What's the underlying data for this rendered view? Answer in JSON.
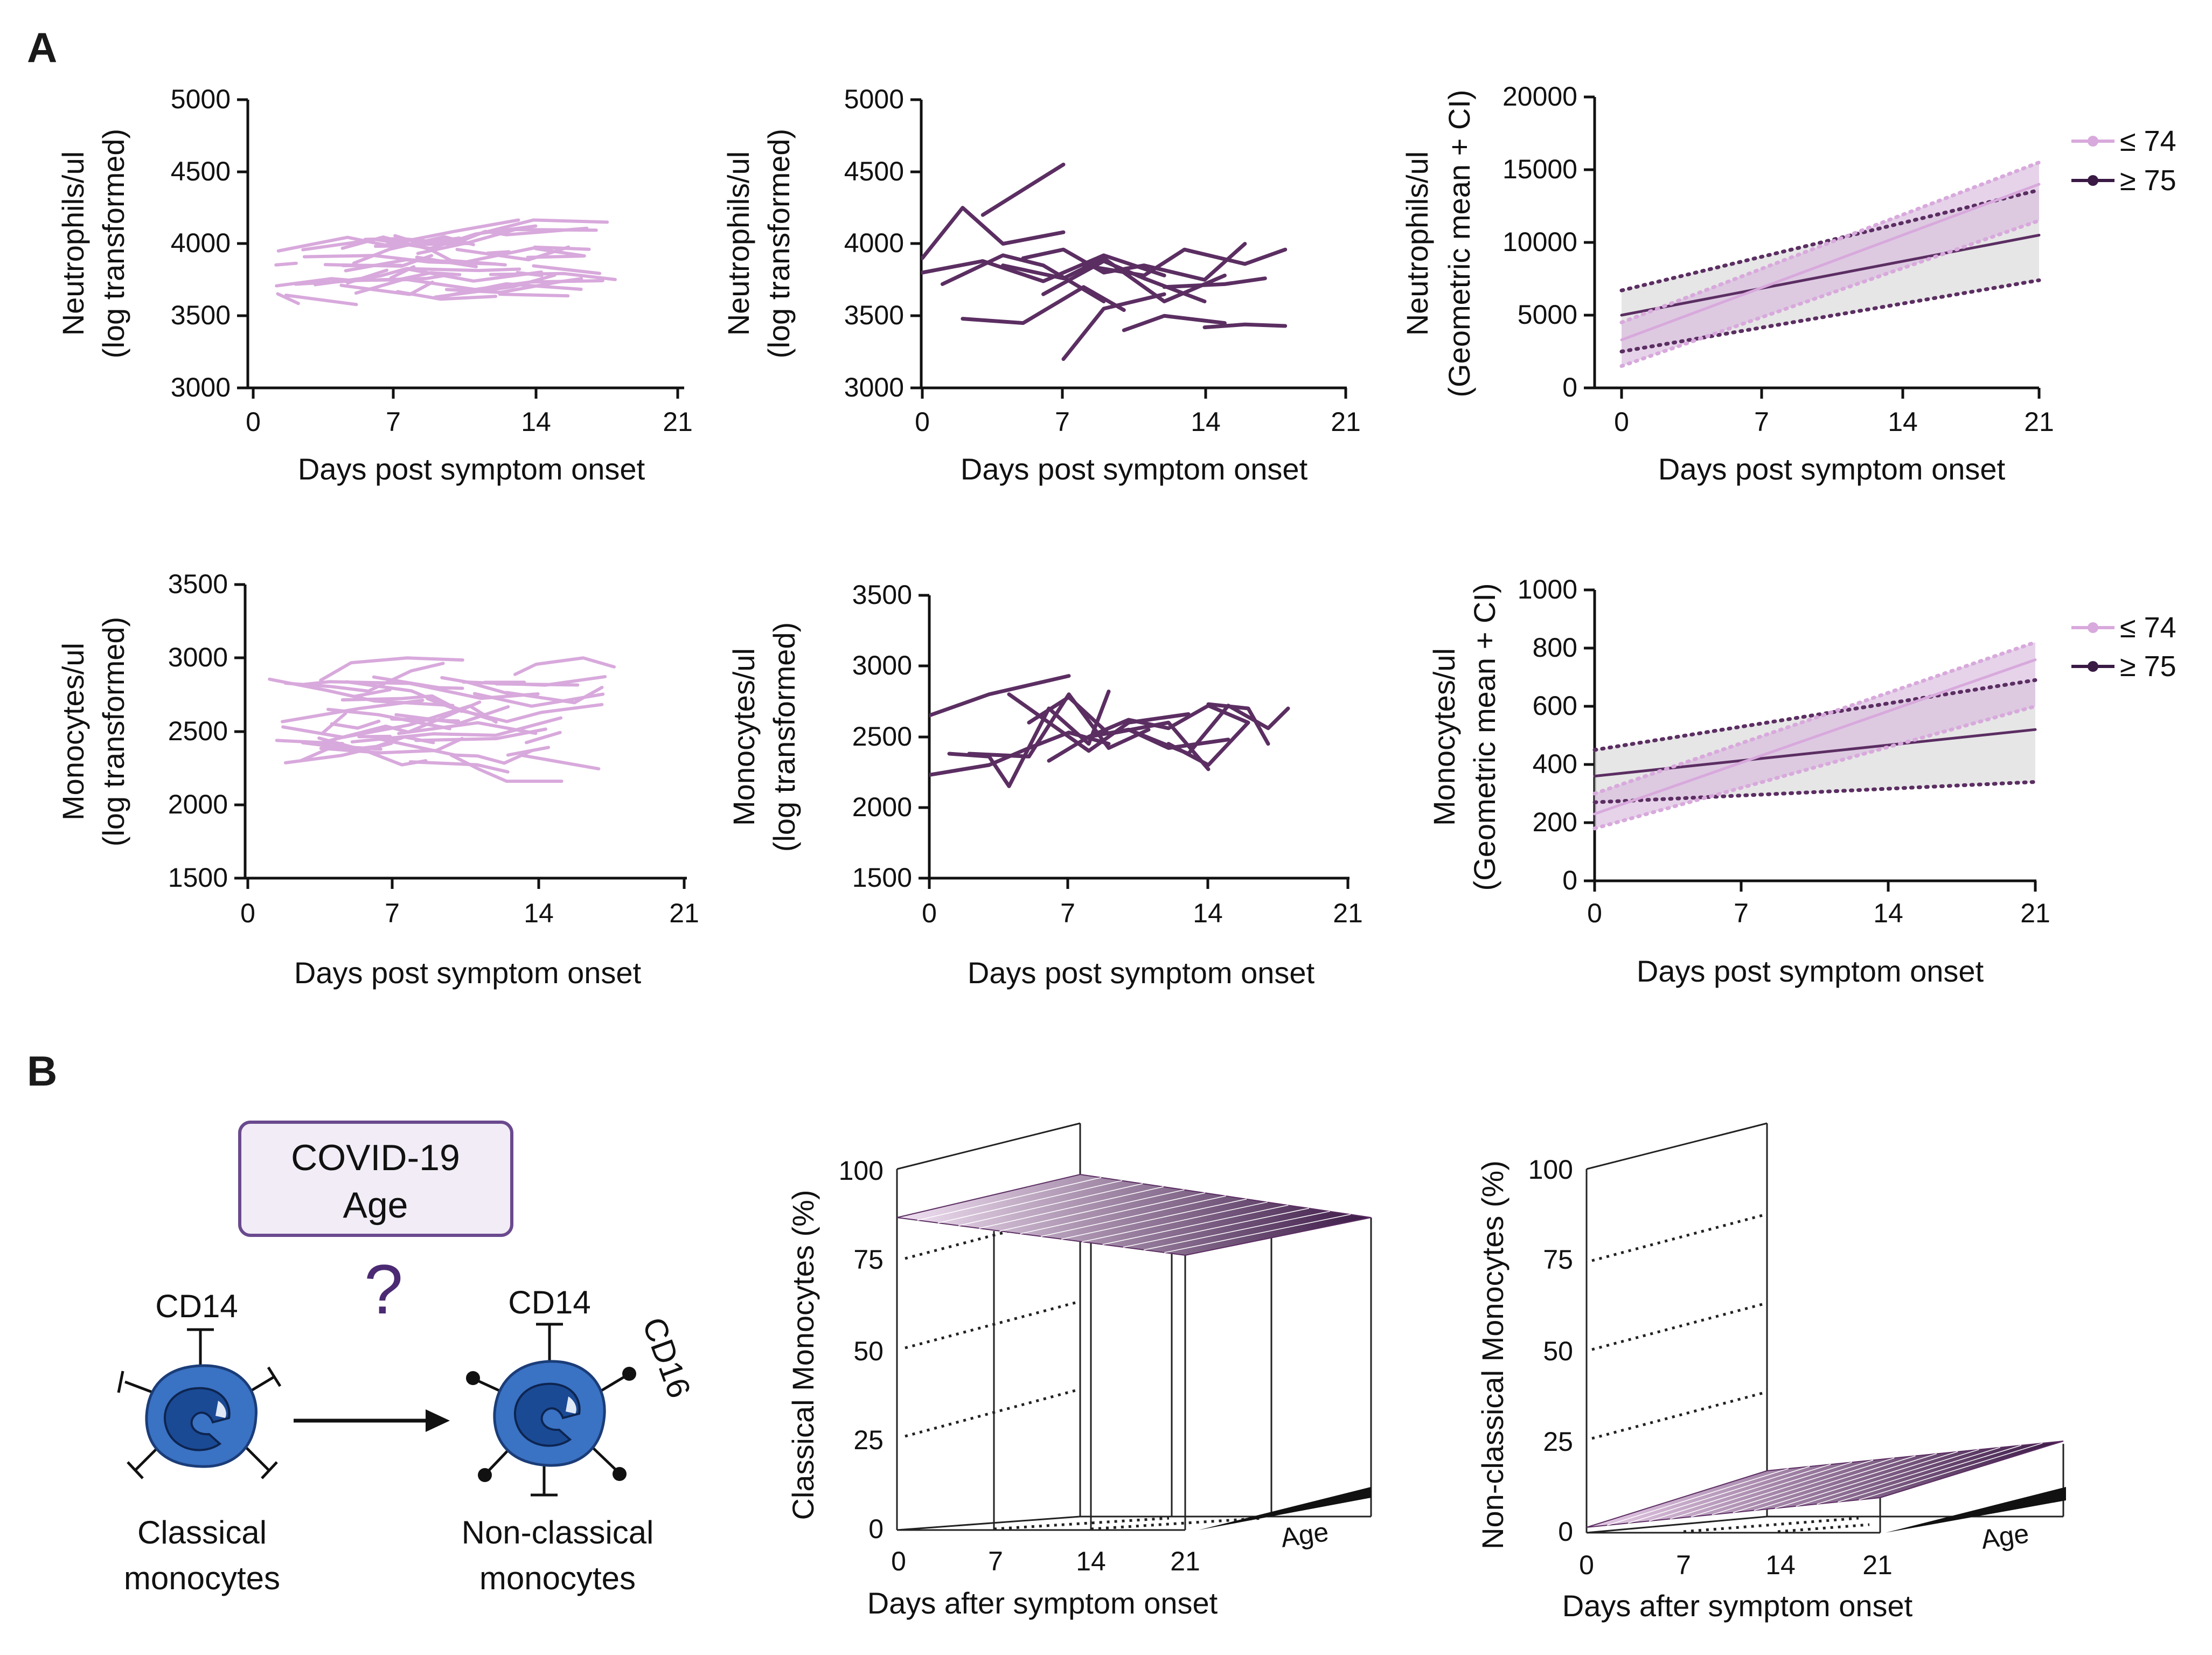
{
  "panel_labels": {
    "a": "A",
    "b": "B"
  },
  "colors": {
    "young": "#d8a9dc",
    "old": "#5b2e62",
    "ci_young_fill": "#d9bcde",
    "ci_old_fill": "#d8d8d8",
    "mono_blue": "#3a72c4",
    "mono_dark": "#1b3d78",
    "box_border": "#6a4a8e",
    "box_fill": "#f1ecf6",
    "surface_light": "#e8cde9",
    "surface_dark": "#3c1a47"
  },
  "chart_data": [
    {
      "id": "neut-young",
      "type": "line",
      "ylabel_line1": "Neutrophils/ul",
      "ylabel_line2": "(log transformed)",
      "xlabel": "Days post symptom onset",
      "xlim": [
        0,
        21
      ],
      "ylim": [
        3000,
        5000
      ],
      "xticks": [
        "0",
        "7",
        "14",
        "21"
      ],
      "yticks": [
        "3000",
        "3500",
        "4000",
        "4500",
        "5000"
      ],
      "series_color": "young",
      "n_trajectories": 40,
      "x_range": [
        1,
        18
      ],
      "y_center": 3850,
      "y_spread": 420,
      "slope_scale": 12,
      "seed": 11
    },
    {
      "id": "neut-old",
      "type": "line",
      "ylabel_line1": "Neutrophils/ul",
      "ylabel_line2": "(log transformed)",
      "xlabel": "Days post symptom onset",
      "xlim": [
        0,
        21
      ],
      "ylim": [
        3000,
        5000
      ],
      "xticks": [
        "0",
        "7",
        "14",
        "21"
      ],
      "yticks": [
        "3000",
        "3500",
        "4000",
        "4500",
        "5000"
      ],
      "series_color": "old",
      "series": [
        {
          "x": [
            0,
            2,
            4,
            7
          ],
          "y": [
            3900,
            4250,
            4000,
            4080
          ]
        },
        {
          "x": [
            3,
            7
          ],
          "y": [
            4200,
            4550
          ]
        },
        {
          "x": [
            0,
            3,
            6,
            9,
            12
          ],
          "y": [
            3800,
            3880,
            3740,
            3920,
            3780
          ]
        },
        {
          "x": [
            1,
            4,
            6,
            9
          ],
          "y": [
            3720,
            3920,
            3850,
            3600
          ]
        },
        {
          "x": [
            2,
            5,
            8,
            10
          ],
          "y": [
            3480,
            3450,
            3700,
            3540
          ]
        },
        {
          "x": [
            4,
            7,
            9,
            12,
            15
          ],
          "y": [
            3850,
            3760,
            3900,
            3600,
            3780
          ]
        },
        {
          "x": [
            6,
            9,
            11,
            14
          ],
          "y": [
            3650,
            3880,
            3760,
            3600
          ]
        },
        {
          "x": [
            8,
            11,
            13,
            16,
            18
          ],
          "y": [
            3850,
            3780,
            3960,
            3860,
            3960
          ]
        },
        {
          "x": [
            10,
            12,
            15
          ],
          "y": [
            3400,
            3500,
            3450
          ]
        },
        {
          "x": [
            12,
            15,
            17
          ],
          "y": [
            3700,
            3720,
            3760
          ]
        },
        {
          "x": [
            14,
            16,
            18
          ],
          "y": [
            3420,
            3440,
            3430
          ]
        },
        {
          "x": [
            5,
            7,
            9,
            11,
            14,
            16
          ],
          "y": [
            3900,
            3960,
            3800,
            3850,
            3750,
            4000
          ]
        },
        {
          "x": [
            7,
            9,
            12
          ],
          "y": [
            3200,
            3550,
            3650
          ]
        }
      ]
    },
    {
      "id": "neut-mean",
      "type": "line",
      "ylabel_line1": "Neutrophils/ul",
      "ylabel_line2": "(Geometric mean + CI)",
      "xlabel": "Days post symptom onset",
      "xlim": [
        0,
        21
      ],
      "ylim": [
        0,
        20000
      ],
      "xticks": [
        "0",
        "7",
        "14",
        "21"
      ],
      "yticks": [
        "0",
        "5000",
        "10000",
        "15000",
        "20000"
      ],
      "legend": [
        "≤ 74",
        "≥ 75"
      ],
      "series": [
        {
          "name": "≤ 74",
          "color": "young",
          "x": [
            0,
            21
          ],
          "mean": [
            3300,
            14000
          ],
          "lo": [
            1500,
            11500
          ],
          "hi": [
            4500,
            15500
          ]
        },
        {
          "name": "≥ 75",
          "color": "old",
          "x": [
            0,
            21
          ],
          "mean": [
            5000,
            10500
          ],
          "lo": [
            2500,
            7400
          ],
          "hi": [
            6700,
            13600
          ]
        }
      ]
    },
    {
      "id": "mono-young",
      "type": "line",
      "ylabel_line1": "Monocytes/ul",
      "ylabel_line2": "(log transformed)",
      "xlabel": "Days post symptom onset",
      "xlim": [
        0,
        21
      ],
      "ylim": [
        1500,
        3500
      ],
      "xticks": [
        "0",
        "7",
        "14",
        "21"
      ],
      "yticks": [
        "1500",
        "2000",
        "2500",
        "3000",
        "3500"
      ],
      "series_color": "young",
      "n_trajectories": 40,
      "x_range": [
        0,
        18
      ],
      "y_center": 2580,
      "y_spread": 560,
      "slope_scale": 12,
      "seed": 29
    },
    {
      "id": "mono-old",
      "type": "line",
      "ylabel_line1": "Monocytes/ul",
      "ylabel_line2": "(log transformed)",
      "xlabel": "Days post symptom onset",
      "xlim": [
        0,
        21
      ],
      "ylim": [
        1500,
        3500
      ],
      "xticks": [
        "0",
        "7",
        "14",
        "21"
      ],
      "yticks": [
        "1500",
        "2000",
        "2500",
        "3000",
        "3500"
      ],
      "series_color": "old",
      "series": [
        {
          "x": [
            0,
            3,
            7
          ],
          "y": [
            2650,
            2800,
            2930
          ]
        },
        {
          "x": [
            0,
            3,
            5,
            7,
            9
          ],
          "y": [
            2230,
            2300,
            2420,
            2530,
            2450
          ]
        },
        {
          "x": [
            1,
            3,
            4,
            6,
            8,
            9
          ],
          "y": [
            2380,
            2360,
            2150,
            2700,
            2450,
            2820
          ]
        },
        {
          "x": [
            2,
            5,
            7,
            9,
            11
          ],
          "y": [
            2380,
            2360,
            2800,
            2420,
            2550
          ]
        },
        {
          "x": [
            4,
            6,
            8,
            10,
            13
          ],
          "y": [
            2800,
            2600,
            2400,
            2600,
            2660
          ]
        },
        {
          "x": [
            6,
            8,
            10,
            12,
            15
          ],
          "y": [
            2330,
            2500,
            2550,
            2420,
            2480
          ]
        },
        {
          "x": [
            8,
            10,
            12,
            14,
            16
          ],
          "y": [
            2500,
            2620,
            2560,
            2720,
            2600
          ]
        },
        {
          "x": [
            10,
            13,
            15,
            17,
            18
          ],
          "y": [
            2550,
            2380,
            2720,
            2560,
            2700
          ]
        },
        {
          "x": [
            12,
            14,
            16
          ],
          "y": [
            2450,
            2300,
            2600
          ]
        },
        {
          "x": [
            14,
            16,
            17
          ],
          "y": [
            2730,
            2700,
            2450
          ]
        },
        {
          "x": [
            5,
            7,
            9,
            12,
            14
          ],
          "y": [
            2600,
            2780,
            2520,
            2600,
            2270
          ]
        }
      ]
    },
    {
      "id": "mono-mean",
      "type": "line",
      "ylabel_line1": "Monocytes/ul",
      "ylabel_line2": "(Geometric mean + CI)",
      "xlabel": "Days post symptom onset",
      "xlim": [
        0,
        21
      ],
      "ylim": [
        0,
        1000
      ],
      "xticks": [
        "0",
        "7",
        "14",
        "21"
      ],
      "yticks": [
        "0",
        "200",
        "400",
        "600",
        "800",
        "1000"
      ],
      "legend": [
        "≤ 74",
        "≥ 75"
      ],
      "series": [
        {
          "name": "≤ 74",
          "color": "young",
          "x": [
            0,
            21
          ],
          "mean": [
            230,
            760
          ],
          "lo": [
            180,
            600
          ],
          "hi": [
            300,
            820
          ]
        },
        {
          "name": "≥ 75",
          "color": "old",
          "x": [
            0,
            21
          ],
          "mean": [
            360,
            520
          ],
          "lo": [
            270,
            340
          ],
          "hi": [
            450,
            690
          ]
        }
      ]
    },
    {
      "id": "classical-3d",
      "type": "surface3d",
      "zlabel": "Classical Monocytes (%)",
      "xlabel": "Days after symptom onset",
      "depth_label": "Age",
      "xticks": [
        "0",
        "7",
        "14",
        "21"
      ],
      "zticks": [
        "0",
        "25",
        "50",
        "75",
        "100"
      ],
      "zlim": [
        0,
        100
      ],
      "surface_z": [
        84,
        85
      ]
    },
    {
      "id": "nonclassical-3d",
      "type": "surface3d",
      "zlabel": "Non-classical Monocytes (%)",
      "xlabel": "Days after symptom onset",
      "depth_label": "Age",
      "xticks": [
        "0",
        "7",
        "14",
        "21"
      ],
      "zticks": [
        "0",
        "25",
        "50",
        "75",
        "100"
      ],
      "zlim": [
        0,
        100
      ],
      "surface_z": [
        2,
        20
      ]
    }
  ],
  "diagram": {
    "box_line1": "COVID-19",
    "box_line2": "Age",
    "question": "?",
    "cd14_left": "CD14",
    "cd14_right": "CD14",
    "cd16": "CD16",
    "left_caption_line1": "Classical",
    "left_caption_line2": "monocytes",
    "right_caption_line1": "Non-classical",
    "right_caption_line2": "monocytes"
  }
}
